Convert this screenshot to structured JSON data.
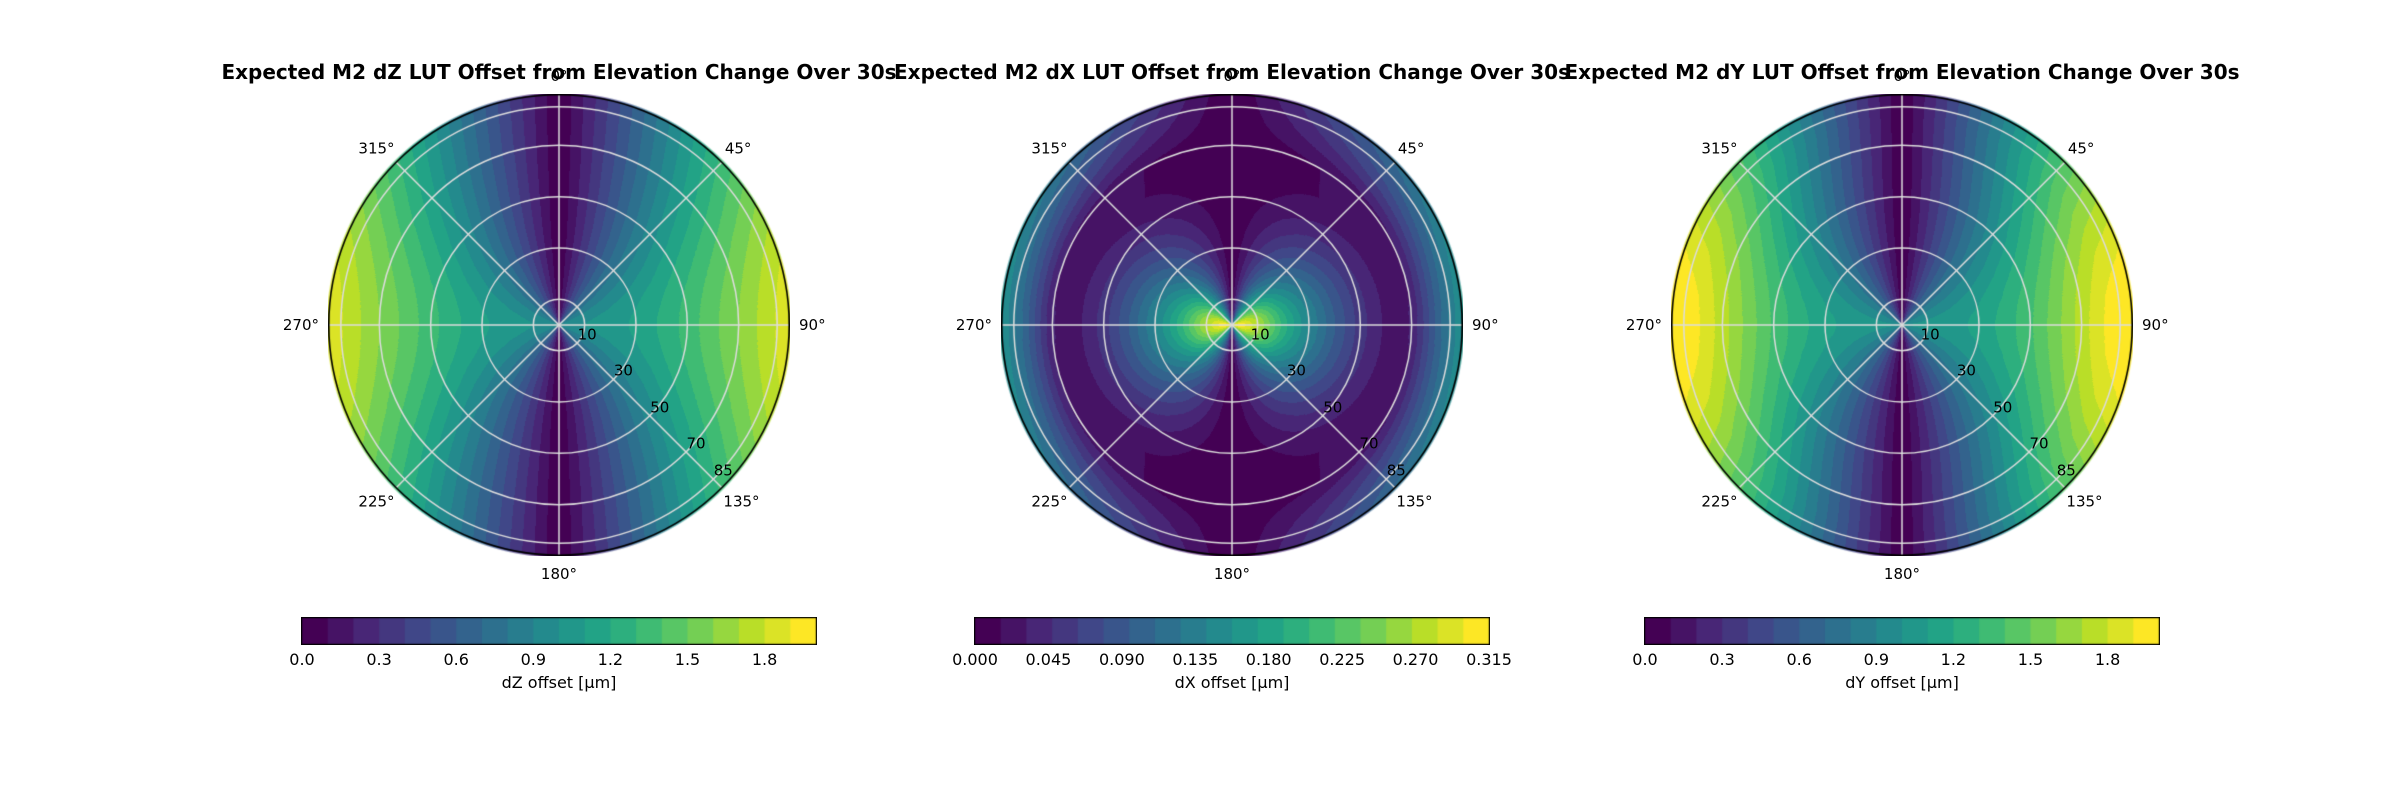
{
  "figure": {
    "background_color": "#ffffff",
    "text_color": "#000000",
    "grid_line_color": "#dcdcdc",
    "outline_color": "#000000",
    "colormap_name": "viridis",
    "colormap_stops": [
      "#440154",
      "#482475",
      "#414487",
      "#355f8d",
      "#2a788e",
      "#21918c",
      "#22a884",
      "#44bf70",
      "#7ad151",
      "#bddf26",
      "#fde725"
    ]
  },
  "chart_data": [
    {
      "type": "polar_contour",
      "title": "Expected M2 dZ LUT Offset from Elevation Change Over 30s",
      "colormap": "viridis",
      "theta_zero": "top",
      "theta_direction": "clockwise",
      "angular_tick_labels": [
        "0°",
        "45°",
        "90°",
        "135°",
        "180°",
        "225°",
        "270°",
        "315°"
      ],
      "angular_tick_degrees": [
        0,
        45,
        90,
        135,
        180,
        225,
        270,
        315
      ],
      "radial_tick_labels": [
        "10",
        "30",
        "50",
        "70",
        "85"
      ],
      "radial_tick_values": [
        10,
        30,
        50,
        70,
        85
      ],
      "r_max": 90,
      "n_bands": 20,
      "vmin": 0.0,
      "vmax": 2.0,
      "field_model": "offset(r,az) = radial_profile(r) * |sin(az)|",
      "r_grid": [
        0,
        10,
        20,
        30,
        40,
        50,
        60,
        70,
        80,
        90
      ],
      "radial_profile": [
        0.98,
        1.0,
        1.05,
        1.12,
        1.22,
        1.34,
        1.47,
        1.6,
        1.74,
        1.88
      ],
      "colorbar": {
        "label": "dZ offset [μm]",
        "tick_labels": [
          "0.0",
          "0.3",
          "0.6",
          "0.9",
          "1.2",
          "1.5",
          "1.8"
        ],
        "tick_values": [
          0.0,
          0.3,
          0.6,
          0.9,
          1.2,
          1.5,
          1.8
        ]
      }
    },
    {
      "type": "polar_contour",
      "title": "Expected M2 dX LUT Offset from Elevation Change Over 30s",
      "colormap": "viridis",
      "theta_zero": "top",
      "theta_direction": "clockwise",
      "angular_tick_labels": [
        "0°",
        "45°",
        "90°",
        "135°",
        "180°",
        "225°",
        "270°",
        "315°"
      ],
      "angular_tick_degrees": [
        0,
        45,
        90,
        135,
        180,
        225,
        270,
        315
      ],
      "radial_tick_labels": [
        "10",
        "30",
        "50",
        "70",
        "85"
      ],
      "radial_tick_values": [
        10,
        30,
        50,
        70,
        85
      ],
      "r_max": 90,
      "n_bands": 20,
      "vmin": 0.0,
      "vmax": 0.315,
      "field_model": "offset(r,az) = radial_profile(r) * |sin(az)|",
      "r_grid": [
        0,
        5,
        10,
        15,
        20,
        25,
        30,
        40,
        50,
        55,
        60,
        70,
        80,
        90
      ],
      "radial_profile": [
        0.315,
        0.302,
        0.272,
        0.235,
        0.198,
        0.168,
        0.142,
        0.095,
        0.055,
        0.04,
        0.028,
        0.032,
        0.1,
        0.16
      ],
      "colorbar": {
        "label": "dX offset [μm]",
        "tick_labels": [
          "0.000",
          "0.045",
          "0.090",
          "0.135",
          "0.180",
          "0.225",
          "0.270",
          "0.315"
        ],
        "tick_values": [
          0.0,
          0.045,
          0.09,
          0.135,
          0.18,
          0.225,
          0.27,
          0.315
        ]
      }
    },
    {
      "type": "polar_contour",
      "title": "Expected M2 dY LUT Offset from Elevation Change Over 30s",
      "colormap": "viridis",
      "theta_zero": "top",
      "theta_direction": "clockwise",
      "angular_tick_labels": [
        "0°",
        "45°",
        "90°",
        "135°",
        "180°",
        "225°",
        "270°",
        "315°"
      ],
      "angular_tick_degrees": [
        0,
        45,
        90,
        135,
        180,
        225,
        270,
        315
      ],
      "radial_tick_labels": [
        "10",
        "30",
        "50",
        "70",
        "85"
      ],
      "radial_tick_values": [
        10,
        30,
        50,
        70,
        85
      ],
      "r_max": 90,
      "n_bands": 20,
      "vmin": 0.0,
      "vmax": 2.0,
      "field_model": "offset(r,az) = radial_profile(r) * |sin(az)|",
      "r_grid": [
        0,
        10,
        20,
        30,
        40,
        50,
        60,
        70,
        80,
        90
      ],
      "radial_profile": [
        1.0,
        1.02,
        1.06,
        1.13,
        1.24,
        1.38,
        1.56,
        1.75,
        1.92,
        2.02
      ],
      "colorbar": {
        "label": "dY offset [μm]",
        "tick_labels": [
          "0.0",
          "0.3",
          "0.6",
          "0.9",
          "1.2",
          "1.5",
          "1.8"
        ],
        "tick_values": [
          0.0,
          0.3,
          0.6,
          0.9,
          1.2,
          1.5,
          1.8
        ]
      }
    }
  ]
}
